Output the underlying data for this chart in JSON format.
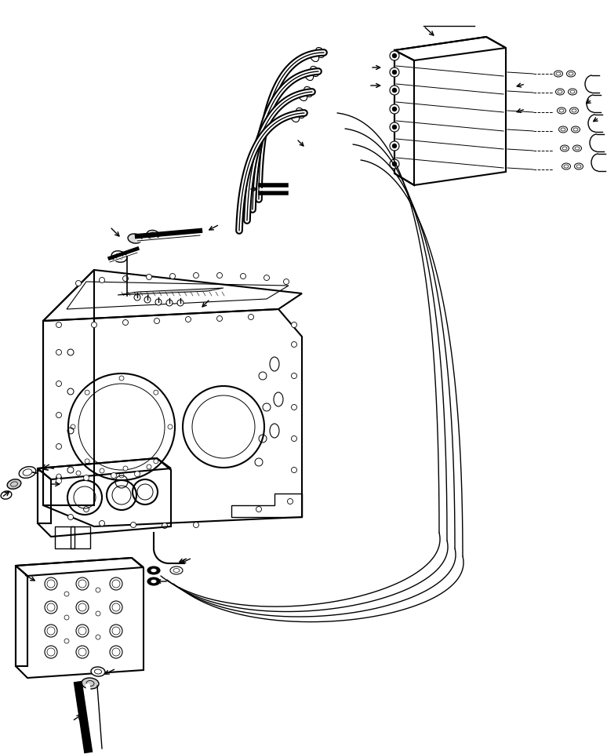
{
  "bg_color": "#ffffff",
  "line_color": "#000000",
  "fig_width": 7.74,
  "fig_height": 9.62,
  "dpi": 100
}
